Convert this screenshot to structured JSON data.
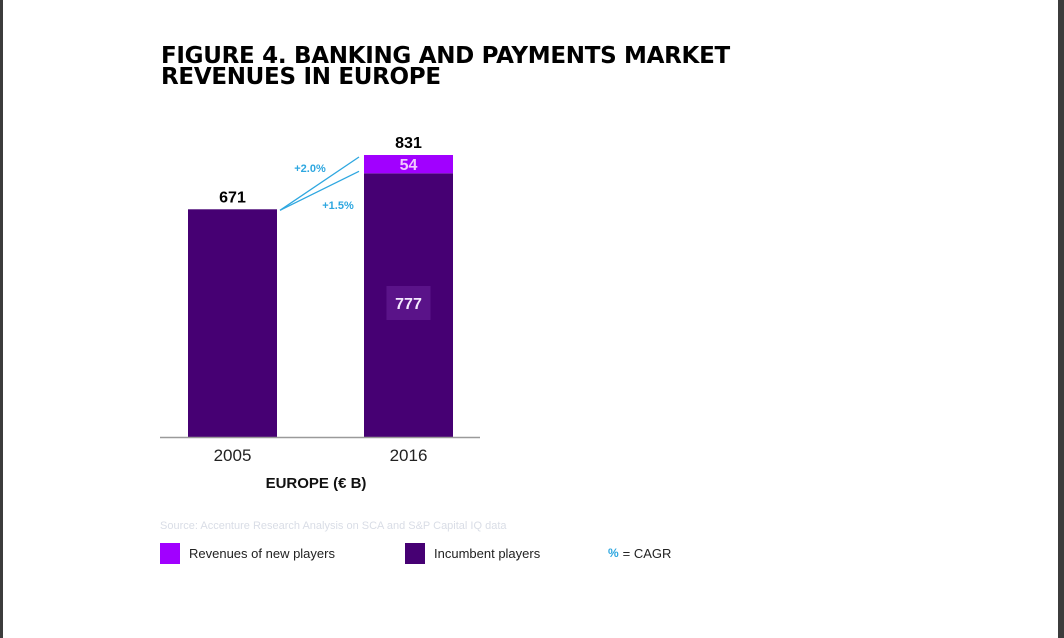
{
  "figure": {
    "title_line1": "FIGURE 4. BANKING AND PAYMENTS MARKET",
    "title_line2": "REVENUES IN EUROPE",
    "source": "Source: Accenture Research Analysis on SCA and S&P Capital IQ data"
  },
  "legend": {
    "new_players_label": "Revenues of new players",
    "incumbent_label": "Incumbent players",
    "cagr_symbol": "%",
    "cagr_label": "= CAGR"
  },
  "colors": {
    "incumbent": "#460073",
    "new_players": "#a100ff",
    "cagr": "#2ea7e0",
    "axis": "#9a9a9a"
  },
  "chart_data": {
    "type": "bar",
    "stacked": true,
    "title": "FIGURE 4. BANKING AND PAYMENTS MARKET REVENUES IN EUROPE",
    "xlabel": "EUROPE  (€ B)",
    "ylabel": "",
    "categories": [
      "2005",
      "2016"
    ],
    "series": [
      {
        "name": "Incumbent players",
        "values": [
          671,
          777
        ],
        "data_labels": [
          "",
          "777"
        ]
      },
      {
        "name": "Revenues of new players",
        "values": [
          0,
          54
        ],
        "data_labels": [
          "",
          "54"
        ]
      }
    ],
    "totals": [
      671,
      831
    ],
    "total_labels": [
      "671",
      "831"
    ],
    "ylim": [
      0,
      831
    ],
    "grid": false,
    "legend_position": "bottom",
    "annotations": [
      {
        "label": "+2.0%",
        "from": "2005",
        "to": "2016 total"
      },
      {
        "label": "+1.5%",
        "from": "2005",
        "to": "2016 incumbent"
      }
    ]
  }
}
